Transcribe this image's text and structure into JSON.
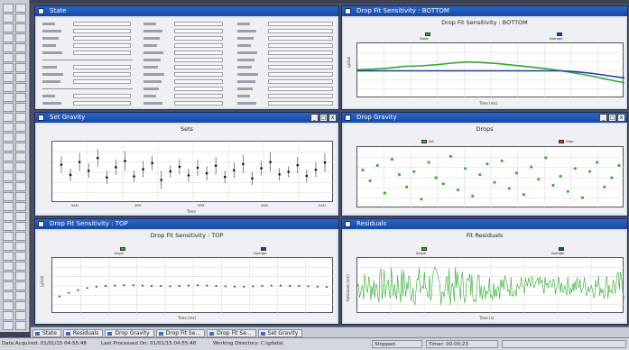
{
  "windows": {
    "state": {
      "title": "State"
    },
    "bottom": {
      "title": "Drop Fit Sensitivity : BOTTOM",
      "chart_title": "Drop Fit Sensitivity : BOTTOM",
      "legend": [
        "Slope",
        "Average"
      ],
      "xlabel": "Time (ms)",
      "ylabel": "(µGal)"
    },
    "sets": {
      "title": "Set Gravity",
      "chart_title": "Sets",
      "xlabel": "Time",
      "xticks": [
        "9AM",
        "3PM",
        "9PM",
        "3AM",
        "9AM"
      ]
    },
    "drops": {
      "title": "Drop Gravity",
      "chart_title": "Drops",
      "legend": [
        "Set",
        "Drop"
      ]
    },
    "top": {
      "title": "Drop Fit Sensitivity : TOP",
      "chart_title": "Drop Fit Sensitivity : TOP",
      "legend": [
        "Slope",
        "Average"
      ],
      "xlabel": "Time (ms)",
      "ylabel": "(µGal)"
    },
    "residuals": {
      "title": "Residuals",
      "chart_title": "Fit Residuals",
      "legend": [
        "Single",
        "Average"
      ],
      "xlabel": "Time (s)",
      "ylabel": "Residuals (nm)"
    }
  },
  "chart_data": [
    {
      "type": "line",
      "panel": "bottom",
      "series": [
        {
          "name": "Slope",
          "color": "#2faa2f",
          "y": [
            0.2,
            0.3,
            0.5,
            0.8,
            0.9,
            1.1,
            1.4,
            1.6,
            1.5,
            1.3,
            1.0,
            0.7,
            0.4,
            0.0,
            -0.5,
            -1.0,
            -1.6,
            -2.2
          ]
        },
        {
          "name": "Average",
          "color": "#1f3fa0",
          "y": [
            0,
            0,
            0,
            0,
            0,
            0,
            0,
            0,
            0,
            0,
            0,
            0,
            0,
            0,
            -0.2,
            -0.5,
            -0.9,
            -1.3
          ]
        }
      ],
      "ylim": [
        -5,
        5
      ]
    },
    {
      "type": "scatter",
      "panel": "sets",
      "y": [
        1.5,
        -0.5,
        2.0,
        0.3,
        2.8,
        -1.0,
        1.0,
        2.2,
        -0.8,
        0.6,
        1.8,
        -1.5,
        0.2,
        1.1,
        -0.6,
        0.9,
        -0.2,
        1.3,
        -0.9,
        0.4,
        1.6,
        -1.2,
        0.8,
        2.0,
        -0.4,
        0.1,
        1.4,
        -0.7,
        0.5,
        1.9
      ],
      "err": [
        1.6,
        1.2,
        1.8,
        1.4,
        1.7,
        1.3,
        1.5,
        1.9,
        1.1,
        1.6,
        1.4,
        1.8,
        1.2,
        1.5,
        1.3,
        1.6,
        1.4,
        1.7,
        1.2,
        1.5,
        1.8,
        1.3,
        1.4,
        1.9,
        1.2,
        1.1,
        1.6,
        1.3,
        1.5,
        1.8
      ],
      "ylim": [
        -6,
        6
      ],
      "color": "#111111"
    },
    {
      "type": "scatter",
      "panel": "drops",
      "y": [
        5,
        -2,
        8,
        -10,
        12,
        2,
        -6,
        4,
        -14,
        10,
        0,
        -4,
        14,
        -8,
        6,
        -12,
        2,
        9,
        -3,
        11,
        -7,
        3,
        -11,
        7,
        -1,
        13,
        -5,
        1,
        -9,
        6,
        -13,
        4,
        10,
        -6,
        0,
        8
      ],
      "ylim": [
        -20,
        20
      ],
      "color": "#39b339"
    },
    {
      "type": "scatter",
      "panel": "top",
      "y": [
        -1.5,
        -1.0,
        -0.6,
        -0.3,
        -0.1,
        0,
        0.05,
        0.1,
        0.1,
        0.05,
        0,
        0,
        -0.05,
        0,
        0.05,
        0.1,
        0.05,
        0,
        -0.05,
        -0.1,
        -0.1,
        -0.05,
        0,
        0.05,
        0.05,
        0,
        0,
        -0.05,
        -0.1,
        -0.15
      ],
      "ylim": [
        -4,
        4
      ],
      "color": "#1f3fa0"
    },
    {
      "type": "line",
      "panel": "residuals",
      "series": [
        {
          "name": "Single",
          "color": "#2faa2f"
        }
      ],
      "ylim": [
        -3,
        3
      ]
    }
  ],
  "taskbar": [
    "State",
    "Residuals",
    "Drop Gravity",
    "Drop Fit Se...",
    "Drop Fit Se...",
    "Set Gravity"
  ],
  "status": {
    "acquired": "Data Acquired: 01/01/15 04:55:48",
    "processed": "Last Processed On: 01/01/15 04:55:48",
    "directory": "Working Directory: C:\\gdata\\",
    "state": "Stopped",
    "timer": "Timer: 00:00:23"
  }
}
